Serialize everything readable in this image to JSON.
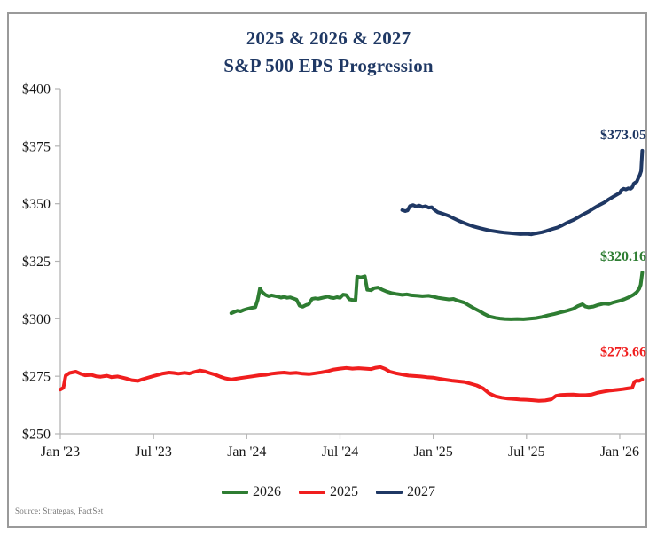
{
  "page": {
    "background": "#ffffff",
    "frame_border_color": "#9a9a9a"
  },
  "chart": {
    "title_line1": "2025 & 2026 & 2027",
    "title_line2": "S&P 500 EPS Progression",
    "title_color": "#1f3864",
    "source_note": "Source: Strategas, FactSet",
    "legend": [
      {
        "label": "2026",
        "color": "#2e7d32"
      },
      {
        "label": "2025",
        "color": "#f01e1e"
      },
      {
        "label": "2027",
        "color": "#1f3864"
      }
    ]
  },
  "chart_data": {
    "type": "line",
    "title": "2025 & 2026 & 2027 S&P 500 EPS Progression",
    "xlabel": "",
    "ylabel": "",
    "x_unit": "months_since_jan_2023",
    "xlim": [
      0,
      37.6
    ],
    "ylim": [
      250,
      400
    ],
    "grid": false,
    "legend_position": "bottom",
    "axis_color": "#b3b3b3",
    "tick_label_color": "#161616",
    "y_ticks": [
      {
        "value": 250,
        "label": "$250"
      },
      {
        "value": 275,
        "label": "$275"
      },
      {
        "value": 300,
        "label": "$300"
      },
      {
        "value": 325,
        "label": "$325"
      },
      {
        "value": 350,
        "label": "$350"
      },
      {
        "value": 375,
        "label": "$375"
      },
      {
        "value": 400,
        "label": "$400"
      }
    ],
    "x_ticks": [
      {
        "month": 0,
        "label": "Jan '23"
      },
      {
        "month": 6,
        "label": "Jul '23"
      },
      {
        "month": 12,
        "label": "Jan '24"
      },
      {
        "month": 18,
        "label": "Jul '24"
      },
      {
        "month": 24,
        "label": "Jan '25"
      },
      {
        "month": 30,
        "label": "Jul '25"
      },
      {
        "month": 36,
        "label": "Jan '26"
      }
    ],
    "series": [
      {
        "name": "2025",
        "color": "#f01e1e",
        "end_label": "$273.66",
        "end_value": 273.66,
        "points": [
          [
            0,
            269.2
          ],
          [
            0.2,
            270.0
          ],
          [
            0.35,
            275.3
          ],
          [
            0.6,
            276.4
          ],
          [
            1,
            277.0
          ],
          [
            1.3,
            276.1
          ],
          [
            1.6,
            275.4
          ],
          [
            2,
            275.6
          ],
          [
            2.3,
            275.0
          ],
          [
            2.6,
            274.8
          ],
          [
            3,
            275.2
          ],
          [
            3.3,
            274.6
          ],
          [
            3.7,
            274.9
          ],
          [
            4,
            274.4
          ],
          [
            4.3,
            273.9
          ],
          [
            4.6,
            273.3
          ],
          [
            5,
            273.0
          ],
          [
            5.3,
            273.7
          ],
          [
            5.6,
            274.3
          ],
          [
            6,
            275.1
          ],
          [
            6.3,
            275.6
          ],
          [
            6.6,
            276.2
          ],
          [
            7,
            276.6
          ],
          [
            7.3,
            276.4
          ],
          [
            7.6,
            276.1
          ],
          [
            8,
            276.5
          ],
          [
            8.3,
            276.2
          ],
          [
            8.6,
            276.8
          ],
          [
            9,
            277.5
          ],
          [
            9.3,
            277.1
          ],
          [
            9.6,
            276.4
          ],
          [
            10,
            275.6
          ],
          [
            10.3,
            274.8
          ],
          [
            10.6,
            274.1
          ],
          [
            11,
            273.6
          ],
          [
            11.3,
            273.9
          ],
          [
            11.6,
            274.2
          ],
          [
            12,
            274.6
          ],
          [
            12.4,
            275.0
          ],
          [
            12.8,
            275.4
          ],
          [
            13.2,
            275.6
          ],
          [
            13.6,
            276.1
          ],
          [
            14,
            276.4
          ],
          [
            14.4,
            276.6
          ],
          [
            14.8,
            276.3
          ],
          [
            15.2,
            276.5
          ],
          [
            15.6,
            276.1
          ],
          [
            16,
            275.9
          ],
          [
            16.4,
            276.3
          ],
          [
            16.8,
            276.7
          ],
          [
            17.2,
            277.2
          ],
          [
            17.6,
            277.9
          ],
          [
            18,
            278.3
          ],
          [
            18.4,
            278.6
          ],
          [
            18.8,
            278.3
          ],
          [
            19.2,
            278.5
          ],
          [
            19.6,
            278.3
          ],
          [
            20,
            278.1
          ],
          [
            20.3,
            278.7
          ],
          [
            20.6,
            279.0
          ],
          [
            20.9,
            278.2
          ],
          [
            21.2,
            277.0
          ],
          [
            21.6,
            276.3
          ],
          [
            22,
            275.8
          ],
          [
            22.4,
            275.3
          ],
          [
            22.8,
            275.1
          ],
          [
            23.2,
            274.9
          ],
          [
            23.6,
            274.6
          ],
          [
            24,
            274.4
          ],
          [
            24.4,
            273.9
          ],
          [
            24.8,
            273.5
          ],
          [
            25.2,
            273.1
          ],
          [
            25.6,
            272.8
          ],
          [
            26,
            272.5
          ],
          [
            26.4,
            271.8
          ],
          [
            26.8,
            271.0
          ],
          [
            27.2,
            269.8
          ],
          [
            27.6,
            267.6
          ],
          [
            28,
            266.3
          ],
          [
            28.4,
            265.7
          ],
          [
            28.8,
            265.3
          ],
          [
            29.2,
            265.1
          ],
          [
            29.6,
            264.9
          ],
          [
            30,
            264.8
          ],
          [
            30.4,
            264.6
          ],
          [
            30.8,
            264.4
          ],
          [
            31.2,
            264.5
          ],
          [
            31.6,
            265.0
          ],
          [
            31.9,
            266.5
          ],
          [
            32.2,
            266.9
          ],
          [
            32.6,
            267.0
          ],
          [
            33,
            267.1
          ],
          [
            33.4,
            266.8
          ],
          [
            33.8,
            266.8
          ],
          [
            34.2,
            267.1
          ],
          [
            34.6,
            267.9
          ],
          [
            35,
            268.4
          ],
          [
            35.4,
            268.8
          ],
          [
            35.8,
            269.1
          ],
          [
            36.2,
            269.4
          ],
          [
            36.5,
            269.7
          ],
          [
            36.8,
            270.0
          ],
          [
            36.95,
            272.6
          ],
          [
            37.1,
            273.1
          ],
          [
            37.25,
            273.0
          ],
          [
            37.45,
            273.66
          ]
        ]
      },
      {
        "name": "2026",
        "color": "#2e7d32",
        "end_label": "$320.16",
        "end_value": 320.16,
        "points": [
          [
            11,
            302.4
          ],
          [
            11.2,
            303.0
          ],
          [
            11.4,
            303.5
          ],
          [
            11.6,
            303.2
          ],
          [
            11.8,
            303.8
          ],
          [
            12,
            304.2
          ],
          [
            12.3,
            304.7
          ],
          [
            12.55,
            305.0
          ],
          [
            12.7,
            308.2
          ],
          [
            12.85,
            313.2
          ],
          [
            13,
            311.6
          ],
          [
            13.2,
            310.4
          ],
          [
            13.4,
            309.8
          ],
          [
            13.6,
            310.2
          ],
          [
            13.8,
            309.9
          ],
          [
            14,
            309.6
          ],
          [
            14.2,
            309.2
          ],
          [
            14.4,
            309.5
          ],
          [
            14.6,
            309.1
          ],
          [
            14.8,
            309.3
          ],
          [
            15,
            308.8
          ],
          [
            15.2,
            308.3
          ],
          [
            15.4,
            305.7
          ],
          [
            15.6,
            305.2
          ],
          [
            15.8,
            305.9
          ],
          [
            16,
            306.4
          ],
          [
            16.2,
            308.6
          ],
          [
            16.4,
            308.9
          ],
          [
            16.6,
            308.7
          ],
          [
            16.8,
            309.0
          ],
          [
            17,
            309.3
          ],
          [
            17.2,
            309.6
          ],
          [
            17.4,
            309.2
          ],
          [
            17.6,
            309.0
          ],
          [
            17.8,
            309.4
          ],
          [
            18,
            309.1
          ],
          [
            18.2,
            310.5
          ],
          [
            18.4,
            310.3
          ],
          [
            18.6,
            308.4
          ],
          [
            18.8,
            308.2
          ],
          [
            19,
            308.0
          ],
          [
            19.1,
            318.3
          ],
          [
            19.35,
            318.0
          ],
          [
            19.6,
            318.5
          ],
          [
            19.75,
            312.6
          ],
          [
            20,
            312.4
          ],
          [
            20.2,
            313.3
          ],
          [
            20.45,
            313.6
          ],
          [
            20.7,
            312.7
          ],
          [
            21,
            311.8
          ],
          [
            21.3,
            311.2
          ],
          [
            21.6,
            310.8
          ],
          [
            22,
            310.4
          ],
          [
            22.3,
            310.6
          ],
          [
            22.6,
            310.2
          ],
          [
            23,
            310.0
          ],
          [
            23.3,
            309.8
          ],
          [
            23.7,
            310.0
          ],
          [
            24,
            309.6
          ],
          [
            24.3,
            309.1
          ],
          [
            24.6,
            308.8
          ],
          [
            25,
            308.4
          ],
          [
            25.3,
            308.6
          ],
          [
            25.6,
            307.8
          ],
          [
            26,
            307.0
          ],
          [
            26.3,
            305.8
          ],
          [
            26.6,
            304.6
          ],
          [
            27,
            303.2
          ],
          [
            27.3,
            302.0
          ],
          [
            27.6,
            301.0
          ],
          [
            28,
            300.4
          ],
          [
            28.3,
            300.1
          ],
          [
            28.6,
            299.9
          ],
          [
            29,
            299.8
          ],
          [
            29.4,
            299.9
          ],
          [
            29.8,
            299.8
          ],
          [
            30.2,
            300.0
          ],
          [
            30.6,
            300.3
          ],
          [
            31,
            300.8
          ],
          [
            31.4,
            301.5
          ],
          [
            31.8,
            302.1
          ],
          [
            32.2,
            302.8
          ],
          [
            32.6,
            303.5
          ],
          [
            33,
            304.3
          ],
          [
            33.3,
            305.5
          ],
          [
            33.6,
            306.3
          ],
          [
            33.8,
            305.3
          ],
          [
            34,
            305.0
          ],
          [
            34.3,
            305.3
          ],
          [
            34.6,
            306.0
          ],
          [
            35,
            306.6
          ],
          [
            35.3,
            306.4
          ],
          [
            35.6,
            307.1
          ],
          [
            36,
            307.8
          ],
          [
            36.3,
            308.5
          ],
          [
            36.6,
            309.4
          ],
          [
            36.9,
            310.5
          ],
          [
            37.1,
            311.6
          ],
          [
            37.25,
            313.0
          ],
          [
            37.35,
            314.8
          ],
          [
            37.45,
            320.16
          ]
        ]
      },
      {
        "name": "2027",
        "color": "#1f3864",
        "end_label": "$373.05",
        "end_value": 373.05,
        "points": [
          [
            22,
            347.2
          ],
          [
            22.2,
            346.8
          ],
          [
            22.35,
            347.1
          ],
          [
            22.5,
            349.0
          ],
          [
            22.7,
            349.4
          ],
          [
            22.9,
            348.8
          ],
          [
            23.1,
            349.2
          ],
          [
            23.3,
            348.6
          ],
          [
            23.5,
            348.9
          ],
          [
            23.7,
            348.3
          ],
          [
            23.9,
            348.5
          ],
          [
            24.1,
            347.2
          ],
          [
            24.3,
            346.3
          ],
          [
            24.5,
            345.9
          ],
          [
            24.8,
            345.2
          ],
          [
            25,
            344.7
          ],
          [
            25.3,
            343.7
          ],
          [
            25.6,
            342.7
          ],
          [
            26,
            341.6
          ],
          [
            26.3,
            340.8
          ],
          [
            26.6,
            340.1
          ],
          [
            27,
            339.4
          ],
          [
            27.3,
            338.9
          ],
          [
            27.6,
            338.4
          ],
          [
            28,
            338.0
          ],
          [
            28.3,
            337.7
          ],
          [
            28.6,
            337.4
          ],
          [
            29,
            337.2
          ],
          [
            29.3,
            337.0
          ],
          [
            29.6,
            336.8
          ],
          [
            30,
            336.9
          ],
          [
            30.3,
            336.7
          ],
          [
            30.6,
            337.1
          ],
          [
            31,
            337.6
          ],
          [
            31.3,
            338.2
          ],
          [
            31.6,
            338.9
          ],
          [
            32,
            339.7
          ],
          [
            32.3,
            340.6
          ],
          [
            32.6,
            341.7
          ],
          [
            33,
            342.9
          ],
          [
            33.3,
            344.0
          ],
          [
            33.6,
            345.2
          ],
          [
            34,
            346.6
          ],
          [
            34.3,
            347.9
          ],
          [
            34.6,
            349.1
          ],
          [
            35,
            350.5
          ],
          [
            35.3,
            351.9
          ],
          [
            35.6,
            353.1
          ],
          [
            36,
            354.7
          ],
          [
            36.1,
            355.9
          ],
          [
            36.25,
            356.5
          ],
          [
            36.4,
            356.2
          ],
          [
            36.55,
            356.7
          ],
          [
            36.7,
            356.5
          ],
          [
            36.8,
            357.1
          ],
          [
            36.9,
            358.7
          ],
          [
            37,
            359.2
          ],
          [
            37.1,
            359.6
          ],
          [
            37.2,
            361.2
          ],
          [
            37.3,
            362.6
          ],
          [
            37.38,
            364.2
          ],
          [
            37.45,
            373.05
          ]
        ]
      }
    ]
  }
}
